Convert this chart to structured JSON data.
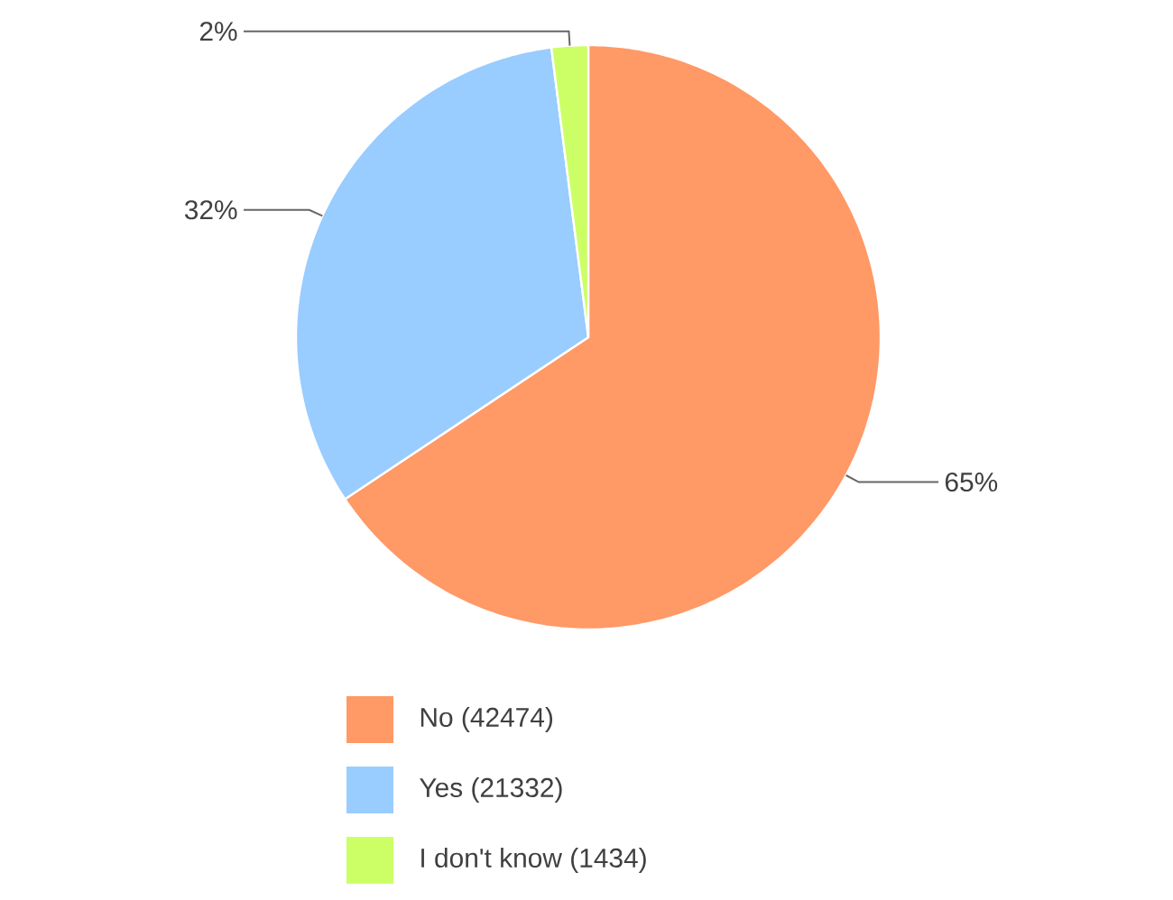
{
  "chart_data": {
    "type": "pie",
    "categories": [
      "No (42474)",
      "Yes (21332)",
      "I don't know (1434)"
    ],
    "values": [
      65,
      32,
      2
    ],
    "value_labels": [
      "65%",
      "32%",
      "2%"
    ],
    "colors": [
      "#ff9966",
      "#99ccff",
      "#ccff66"
    ],
    "legend": "bottom"
  }
}
